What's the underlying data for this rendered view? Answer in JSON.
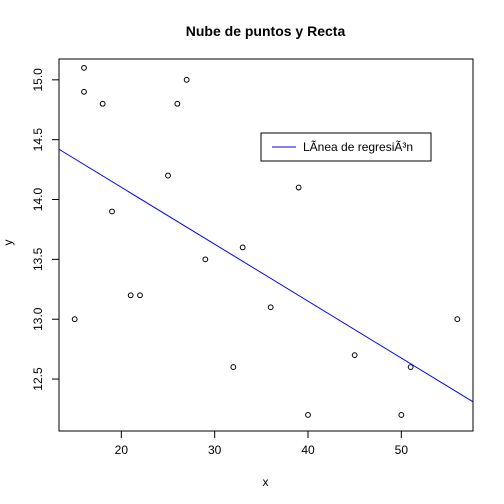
{
  "chart_data": {
    "type": "scatter",
    "title": "Nube de puntos y Recta",
    "xlabel": "x",
    "ylabel": "y",
    "xlim": [
      13.32,
      57.68
    ],
    "ylim": [
      12.066,
      15.174
    ],
    "x_ticks": [
      20,
      30,
      40,
      50
    ],
    "y_ticks": [
      12.5,
      13.0,
      13.5,
      14.0,
      14.5,
      15.0
    ],
    "x_tick_labels": [
      "20",
      "30",
      "40",
      "50"
    ],
    "y_tick_labels": [
      "12.5",
      "13.0",
      "13.5",
      "14.0",
      "14.5",
      "15.0"
    ],
    "points": [
      {
        "x": 15,
        "y": 13.0
      },
      {
        "x": 16,
        "y": 15.1
      },
      {
        "x": 16,
        "y": 14.9
      },
      {
        "x": 18,
        "y": 14.8
      },
      {
        "x": 19,
        "y": 13.9
      },
      {
        "x": 21,
        "y": 13.2
      },
      {
        "x": 22,
        "y": 13.2
      },
      {
        "x": 25,
        "y": 14.2
      },
      {
        "x": 26,
        "y": 14.8
      },
      {
        "x": 27,
        "y": 15.0
      },
      {
        "x": 29,
        "y": 13.5
      },
      {
        "x": 32,
        "y": 12.6
      },
      {
        "x": 33,
        "y": 13.6
      },
      {
        "x": 36,
        "y": 13.1
      },
      {
        "x": 39,
        "y": 14.1
      },
      {
        "x": 40,
        "y": 12.2
      },
      {
        "x": 45,
        "y": 12.7
      },
      {
        "x": 50,
        "y": 12.2
      },
      {
        "x": 51,
        "y": 12.6
      },
      {
        "x": 56,
        "y": 13.0
      }
    ],
    "regression_line": {
      "name": "LÃ­nea de regresiÃ³n",
      "color": "#0000ff",
      "start": {
        "x": 13.32,
        "y": 14.42
      },
      "end": {
        "x": 57.68,
        "y": 12.31
      }
    },
    "legend": {
      "position": "top-right",
      "entries": [
        "LÃ­nea de regresiÃ³n"
      ]
    },
    "grid": false
  }
}
